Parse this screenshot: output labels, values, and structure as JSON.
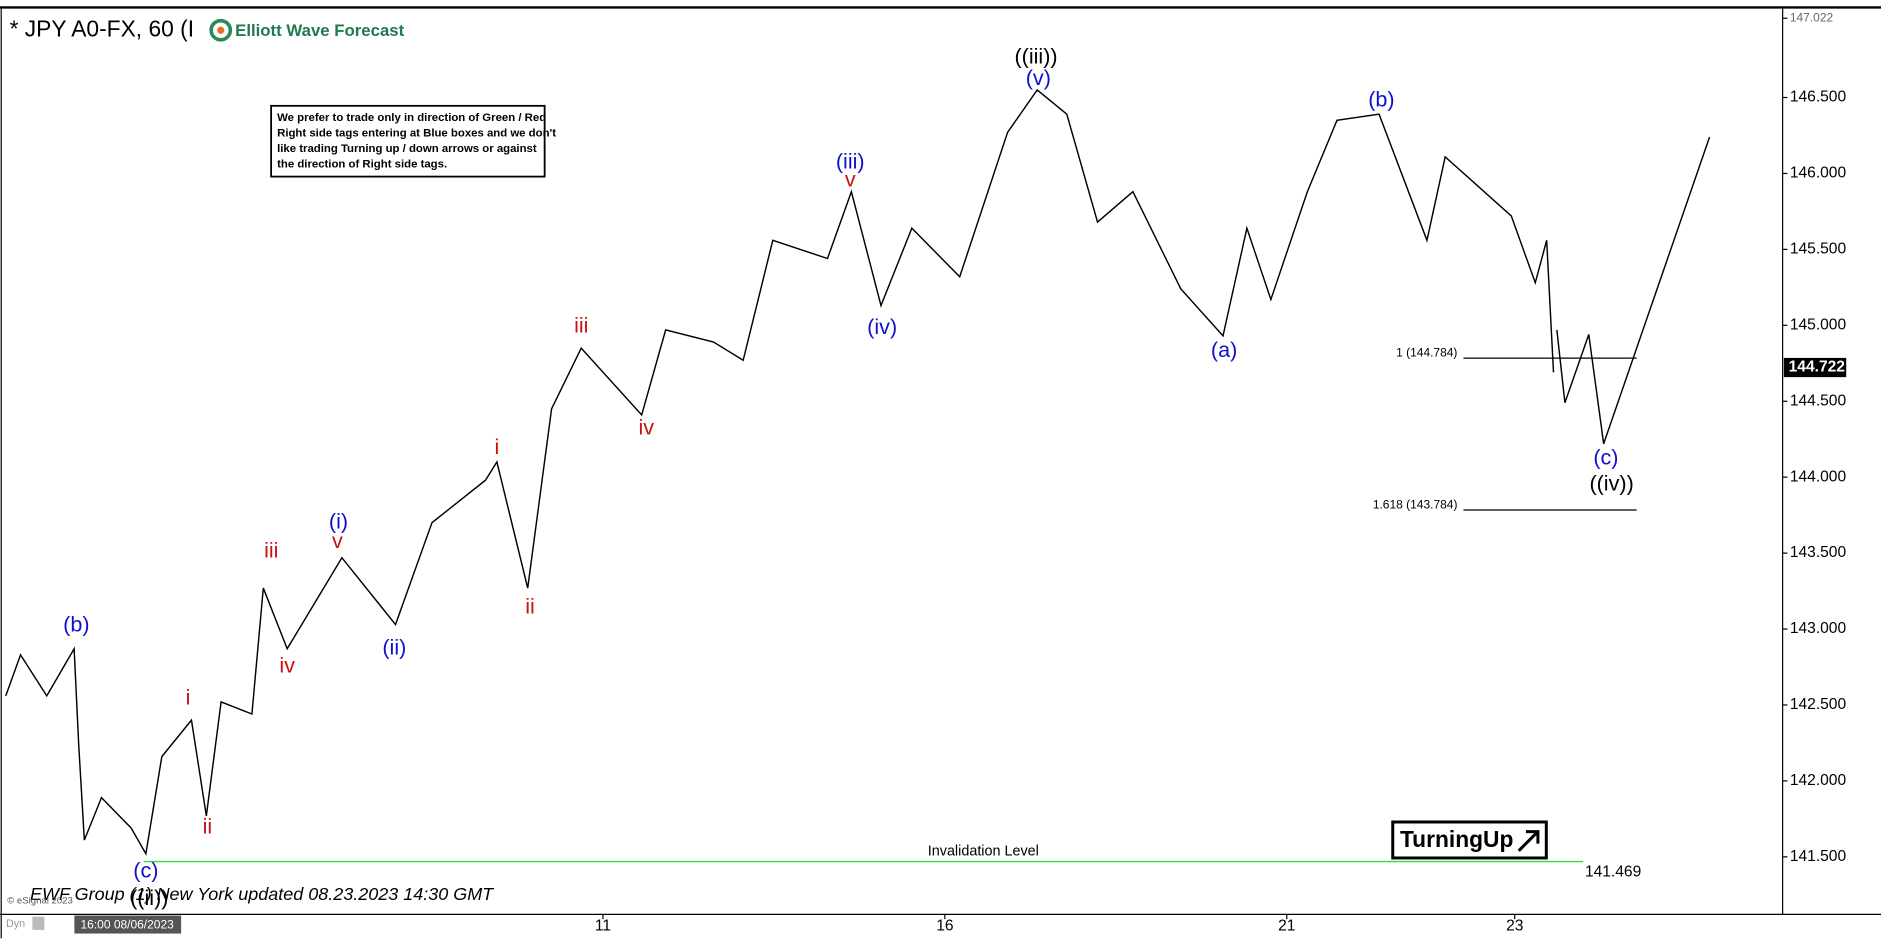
{
  "chart_data": {
    "type": "line",
    "title": "* JPY A0-FX, 60 (I",
    "brand": "Elliott Wave Forecast",
    "note": {
      "lines": [
        "We prefer to trade only in direction of Green / Red",
        "Right side tags entering at Blue boxes and we don't",
        "like trading Turning up / down arrows or against",
        "the direction of Right side tags."
      ]
    },
    "footer": "EWF Group (1) New York updated 08.23.2023 14:30 GMT",
    "copyright": "© eSignal 2023",
    "mode": "Dyn",
    "x_start_label": "16:00 08/06/2023",
    "badge": "TurningUp",
    "xlim": [
      -0.29,
      15.34
    ],
    "xticks": [
      {
        "value": 5,
        "label": "11"
      },
      {
        "value": 8,
        "label": "16"
      },
      {
        "value": 11,
        "label": "21"
      },
      {
        "value": 13,
        "label": "23"
      }
    ],
    "ylim": [
      141.137,
      147.022
    ],
    "yticks": [
      {
        "value": 141.5,
        "label": "141.500"
      },
      {
        "value": 142,
        "label": "142.000"
      },
      {
        "value": 142.5,
        "label": "142.500"
      },
      {
        "value": 143,
        "label": "143.000"
      },
      {
        "value": 143.5,
        "label": "143.500"
      },
      {
        "value": 144,
        "label": "144.000"
      },
      {
        "value": 144.5,
        "label": "144.500"
      },
      {
        "value": 145,
        "label": "145.000"
      },
      {
        "value": 145.5,
        "label": "145.500"
      },
      {
        "value": 146,
        "label": "146.000"
      },
      {
        "value": 146.5,
        "label": "146.500"
      },
      147.022
    ],
    "last_price": 144.722,
    "series": [
      {
        "color": "#000000",
        "x": [
          -0.24,
          -0.11,
          0.12,
          0.36,
          0.4,
          0.45,
          0.6,
          0.86,
          0.99,
          1.13,
          1.39,
          1.52,
          1.65,
          1.92,
          2.02,
          2.23,
          2.71,
          3.18,
          3.5,
          3.97,
          4.07,
          4.34,
          4.55,
          4.81,
          5.34,
          5.55,
          5.97,
          6.23,
          6.49,
          6.97,
          7.18,
          7.44,
          7.71,
          8.13,
          8.55,
          8.81,
          9.07,
          9.34,
          9.65,
          10.07,
          10.44,
          10.65,
          10.86,
          11.18,
          11.44,
          11.81,
          12.23,
          12.39,
          12.97,
          13.18,
          13.28,
          13.34
        ],
        "values": [
          142.56,
          142.83,
          142.56,
          142.87,
          142.24,
          141.61,
          141.89,
          141.69,
          141.52,
          142.16,
          142.4,
          141.77,
          142.52,
          142.44,
          143.27,
          142.87,
          143.47,
          143.03,
          143.7,
          143.98,
          144.1,
          143.27,
          144.45,
          144.85,
          144.41,
          144.97,
          144.89,
          144.77,
          145.56,
          145.44,
          145.88,
          145.13,
          145.64,
          145.32,
          146.27,
          146.55,
          146.39,
          145.68,
          145.88,
          145.24,
          144.93,
          145.64,
          145.17,
          145.88,
          146.35,
          146.39,
          145.56,
          146.11,
          145.72,
          145.28,
          145.56,
          144.69
        ]
      },
      {
        "color": "#000000",
        "x": [
          13.37,
          13.44,
          13.65,
          13.78,
          14.71
        ],
        "values": [
          144.97,
          144.49,
          144.94,
          144.22,
          146.24
        ]
      }
    ],
    "levels": [
      {
        "label": "1 (144.784)",
        "value": 144.784,
        "x": [
          12.55,
          14.07
        ],
        "color": "#000000"
      },
      {
        "label": "1.618 (143.784)",
        "value": 143.784,
        "x": [
          12.55,
          14.07
        ],
        "color": "#000000"
      }
    ],
    "invalidation": {
      "label": "Invalidation Level",
      "value": 141.469,
      "x": [
        0.97,
        13.6
      ],
      "color": "#33dd33"
    },
    "annotations": [
      {
        "text": "(b)",
        "x": 0.38,
        "y": 143.02,
        "color": "#1010cc"
      },
      {
        "text": "(c)",
        "x": 0.99,
        "y": 141.4,
        "color": "#1010cc"
      },
      {
        "text": "((ii))",
        "x": 1.02,
        "y": 141.22,
        "color": "#000000"
      },
      {
        "text": "i",
        "x": 1.36,
        "y": 142.54,
        "color": "#cc1010"
      },
      {
        "text": "ii",
        "x": 1.53,
        "y": 141.69,
        "color": "#cc1010"
      },
      {
        "text": "iii",
        "x": 2.09,
        "y": 143.51,
        "color": "#cc1010"
      },
      {
        "text": "iv",
        "x": 2.23,
        "y": 142.75,
        "color": "#cc1010"
      },
      {
        "text": "v",
        "x": 2.67,
        "y": 143.57,
        "color": "#cc1010"
      },
      {
        "text": "(i)",
        "x": 2.68,
        "y": 143.7,
        "color": "#1010cc"
      },
      {
        "text": "(ii)",
        "x": 3.17,
        "y": 142.87,
        "color": "#1010cc"
      },
      {
        "text": "i",
        "x": 4.07,
        "y": 144.19,
        "color": "#cc1010"
      },
      {
        "text": "ii",
        "x": 4.36,
        "y": 143.14,
        "color": "#cc1010"
      },
      {
        "text": "iii",
        "x": 4.81,
        "y": 144.99,
        "color": "#cc1010"
      },
      {
        "text": "iv",
        "x": 5.38,
        "y": 144.32,
        "color": "#cc1010"
      },
      {
        "text": "(iii)",
        "x": 7.17,
        "y": 146.07,
        "color": "#1010cc"
      },
      {
        "text": "v",
        "x": 7.17,
        "y": 145.95,
        "color": "#cc1010"
      },
      {
        "text": "(iv)",
        "x": 7.45,
        "y": 144.98,
        "color": "#1010cc"
      },
      {
        "text": "((iii))",
        "x": 8.8,
        "y": 146.76,
        "color": "#000000"
      },
      {
        "text": "(v)",
        "x": 8.82,
        "y": 146.62,
        "color": "#1010cc"
      },
      {
        "text": "(a)",
        "x": 10.45,
        "y": 144.83,
        "color": "#1010cc"
      },
      {
        "text": "(b)",
        "x": 11.83,
        "y": 146.48,
        "color": "#1010cc"
      },
      {
        "text": "(c)",
        "x": 13.8,
        "y": 144.12,
        "color": "#1010cc"
      },
      {
        "text": "((iv))",
        "x": 13.85,
        "y": 143.95,
        "color": "#000000"
      }
    ]
  }
}
